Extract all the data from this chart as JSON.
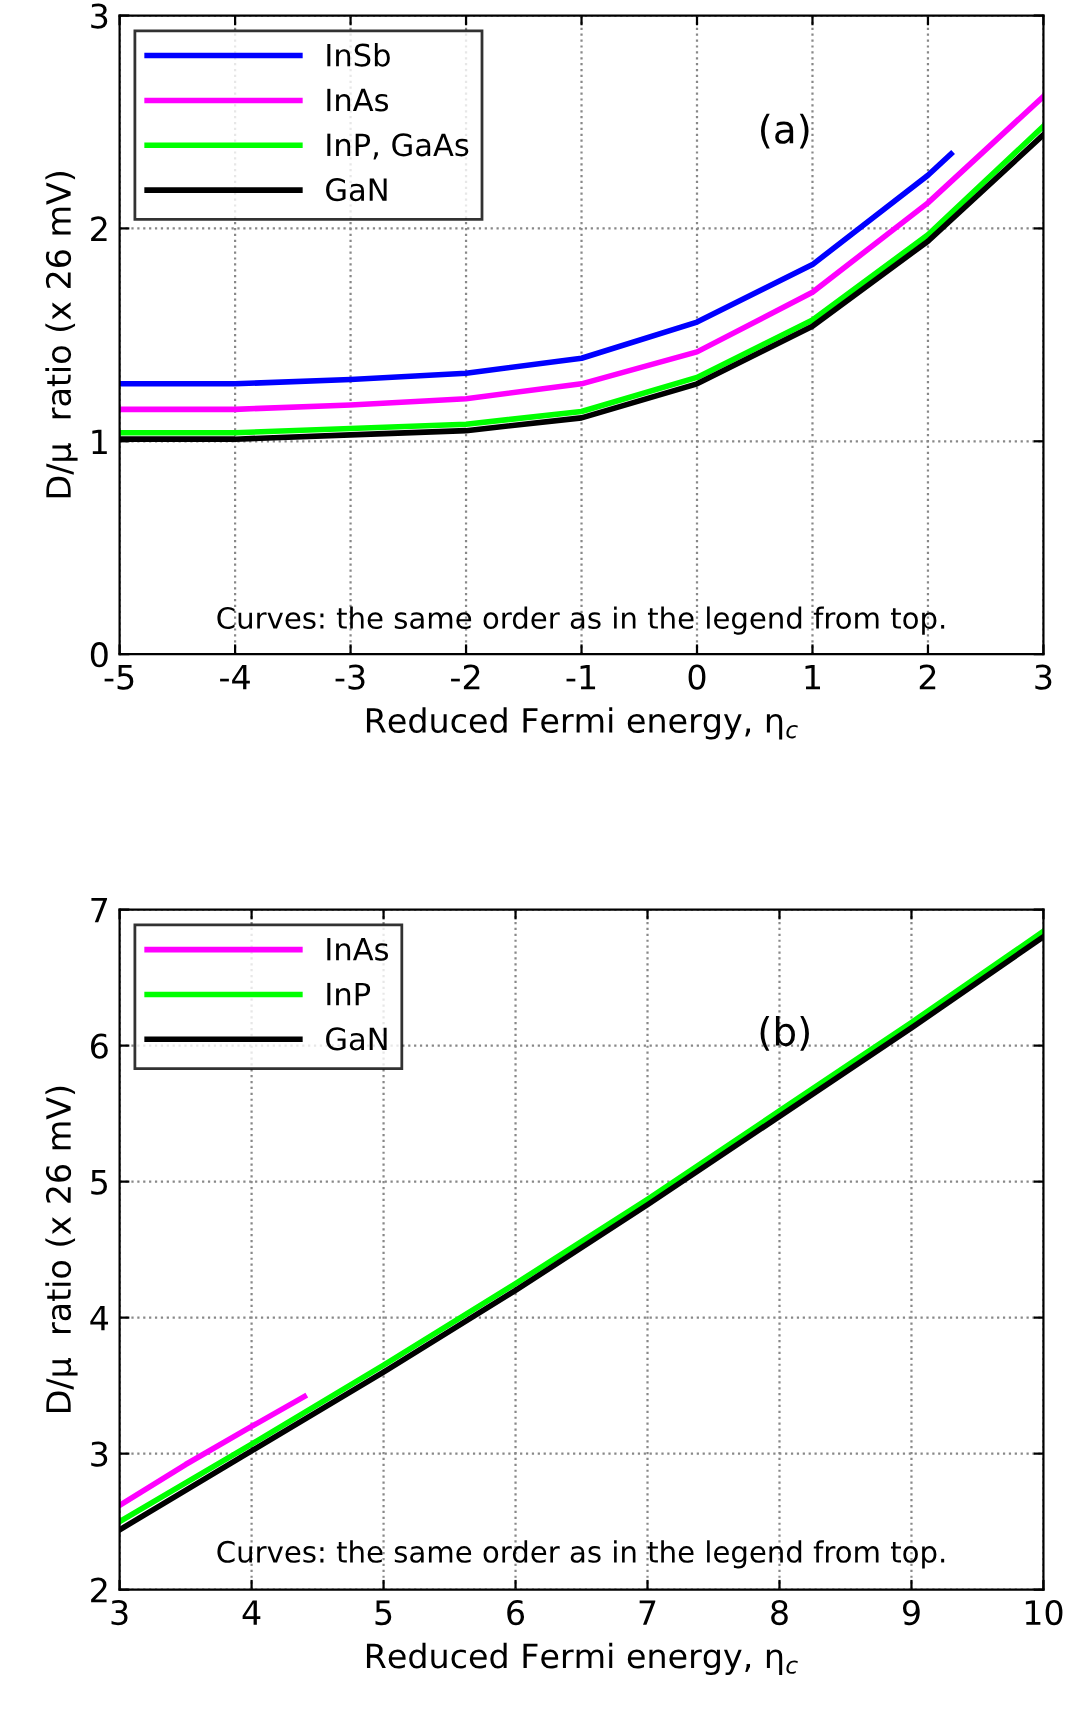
{
  "chart_data": [
    {
      "type": "line",
      "xlabel": "Reduced Fermi energy, η$_{c}$",
      "ylabel": "D/μ  ratio (x 26 mV)",
      "xlim": [
        -5,
        3
      ],
      "ylim": [
        0,
        3
      ],
      "xticks": [
        -5,
        -4,
        -3,
        -2,
        -1,
        0,
        1,
        2,
        3
      ],
      "yticks": [
        0,
        1,
        2,
        3
      ],
      "grid": true,
      "legend": "top left",
      "line_style": "solid",
      "annotations": [
        "(a)",
        "Curves: the same order as in the legend from top."
      ],
      "series": [
        {
          "name": "InSb",
          "color": "#0000ff",
          "x": [
            -5,
            -4,
            -3,
            -2,
            -1,
            0,
            1,
            2,
            2.2
          ],
          "values": [
            1.27,
            1.27,
            1.29,
            1.32,
            1.39,
            1.56,
            1.83,
            2.25,
            2.35
          ]
        },
        {
          "name": "InAs",
          "color": "#ff00ff",
          "x": [
            -5,
            -4,
            -3,
            -2,
            -1,
            0,
            1,
            2,
            3
          ],
          "values": [
            1.15,
            1.15,
            1.17,
            1.2,
            1.27,
            1.42,
            1.7,
            2.12,
            2.62
          ]
        },
        {
          "name": "InP, GaAs",
          "color": "#00ff00",
          "x": [
            -5,
            -4,
            -3,
            -2,
            -1,
            0,
            1,
            2,
            3
          ],
          "values": [
            1.04,
            1.04,
            1.06,
            1.08,
            1.14,
            1.3,
            1.57,
            1.97,
            2.48
          ]
        },
        {
          "name": "GaN",
          "color": "#000000",
          "x": [
            -5,
            -4,
            -3,
            -2,
            -1,
            0,
            1,
            2,
            3
          ],
          "values": [
            1.01,
            1.01,
            1.03,
            1.05,
            1.11,
            1.27,
            1.54,
            1.94,
            2.44
          ]
        }
      ]
    },
    {
      "type": "line",
      "xlabel": "Reduced Fermi energy, η$_{c}$",
      "ylabel": "D/μ  ratio (x 26 mV)",
      "xlim": [
        3,
        10
      ],
      "ylim": [
        2,
        7
      ],
      "xticks": [
        3,
        4,
        5,
        6,
        7,
        8,
        9,
        10
      ],
      "yticks": [
        2,
        3,
        4,
        5,
        6,
        7
      ],
      "grid": true,
      "legend": "top left",
      "line_style": "solid",
      "annotations": [
        "(b)",
        "Curves: the same order as in the legend from top."
      ],
      "series": [
        {
          "name": "InAs",
          "color": "#ff00ff",
          "x": [
            3,
            3.5,
            4,
            4.4
          ],
          "values": [
            2.62,
            2.92,
            3.2,
            3.42
          ]
        },
        {
          "name": "InP",
          "color": "#00ff00",
          "x": [
            3,
            4,
            5,
            6,
            7,
            8,
            9,
            10
          ],
          "values": [
            2.5,
            3.07,
            3.65,
            4.25,
            4.87,
            5.52,
            6.17,
            6.84
          ]
        },
        {
          "name": "GaN",
          "color": "#000000",
          "x": [
            3,
            4,
            5,
            6,
            7,
            8,
            9,
            10
          ],
          "values": [
            2.44,
            3.02,
            3.6,
            4.2,
            4.83,
            5.48,
            6.13,
            6.8
          ]
        }
      ]
    }
  ]
}
